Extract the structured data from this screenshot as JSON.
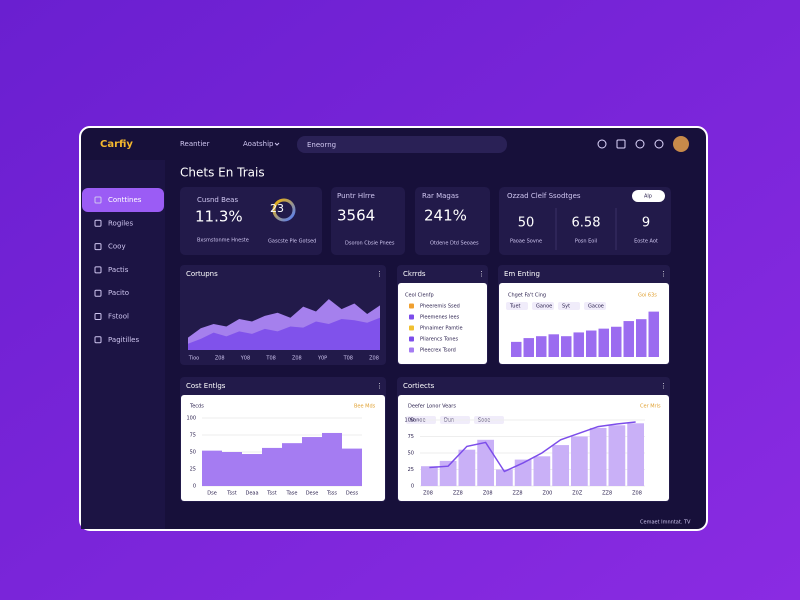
{
  "topbar": {
    "logo": "Carfiy",
    "nav": [
      "Reantier",
      "Aoatship"
    ],
    "search": "Eneorng"
  },
  "sidebar": [
    "Conttines",
    "Rogiles",
    "Cooy",
    "Pactis",
    "Pacito",
    "Fstool",
    "Pagitilles"
  ],
  "heading": "Chets En Trais",
  "kpis": [
    {
      "label": "Cusnd Beas",
      "value": "11.3%",
      "note": "Bxsmstonme Hneste",
      "ring": "23",
      "ring_note": "Gascste Ple Gotsed"
    },
    {
      "label": "Puntr Hlrre",
      "value": "3564",
      "note": "Dsoron Cbsie Pnees"
    },
    {
      "label": "Rar Magas",
      "value": "241%",
      "note": "Otdene Dtd Seoaes"
    }
  ],
  "summary": {
    "label": "Ozzad Clelf Ssodtges",
    "button": "Alp",
    "items": [
      {
        "value": "50",
        "note": "Paoae Sovne"
      },
      {
        "value": "6.58",
        "note": "Posn Eoil"
      },
      {
        "value": "9",
        "note": "Eoste Aot"
      }
    ]
  },
  "area_chart": {
    "title": "Cortupns",
    "categories": [
      "Tioo",
      "Z08",
      "Y08",
      "T08",
      "Z08",
      "Y0P",
      "T08",
      "Z08"
    ],
    "series": [
      {
        "color": "#b48cff",
        "values": [
          20,
          35,
          42,
          38,
          50,
          46,
          55,
          60,
          52,
          70,
          62,
          82,
          66,
          75,
          58,
          72
        ]
      },
      {
        "color": "#7c4dea",
        "values": [
          10,
          18,
          28,
          22,
          30,
          26,
          34,
          30,
          38,
          36,
          46,
          42,
          50,
          48,
          44,
          52
        ]
      }
    ],
    "ylim": [
      0,
      100
    ]
  },
  "list_card": {
    "title": "Ckrrds",
    "subtitle": "Ceol Clenfp",
    "items": [
      "Pheeremis Ssed",
      "Pleemenes Iees",
      "Phnaimer Pamtie",
      "Pliarencs Tones",
      "Pleecrex Tsord"
    ]
  },
  "bar_card": {
    "title": "Em Enting",
    "subtitle": "Chget Fa't Cing",
    "legend": "Goi 63s",
    "filters": [
      "Tuet",
      "Ganoe",
      "Syt",
      "Gacoe"
    ],
    "values": [
      16,
      20,
      22,
      24,
      22,
      26,
      28,
      30,
      32,
      38,
      40,
      48
    ],
    "ylim": [
      0,
      55
    ],
    "color": "#9b6cf0"
  },
  "bottom_left": {
    "title": "Cost Entlgs",
    "subtitle": "Tecds",
    "legend": "Bee Mds",
    "categories": [
      "Dse",
      "Tsst",
      "Deaa",
      "Tsst",
      "Tase",
      "Dese",
      "Tsss",
      "Dess"
    ],
    "values": [
      52,
      50,
      47,
      56,
      63,
      72,
      78,
      55
    ],
    "ylim": [
      0,
      100
    ],
    "yticks": [
      0,
      25,
      50,
      75,
      100
    ],
    "color": "#a57cf2"
  },
  "bottom_right": {
    "title": "Cortiects",
    "subtitle": "Deefer Lonor Vears",
    "legend": "Cer Mrls",
    "filters": [
      "Sanoe",
      "Dun",
      "Sooe"
    ],
    "categories": [
      "Z08",
      "ZZ8",
      "Z08",
      "ZZ8",
      "Z00",
      "Z0Z",
      "ZZ8",
      "Z08"
    ],
    "bars": [
      30,
      38,
      55,
      70,
      25,
      40,
      45,
      62,
      75,
      88,
      92,
      95
    ],
    "line": [
      28,
      30,
      60,
      66,
      22,
      35,
      50,
      70,
      80,
      90,
      94,
      97
    ],
    "ylim": [
      0,
      100
    ],
    "yticks": [
      0,
      25,
      50,
      75,
      100
    ],
    "color": "#c9b0f7",
    "line_color": "#7c4dea"
  },
  "footer": "Cemaet Imnntat. TV"
}
